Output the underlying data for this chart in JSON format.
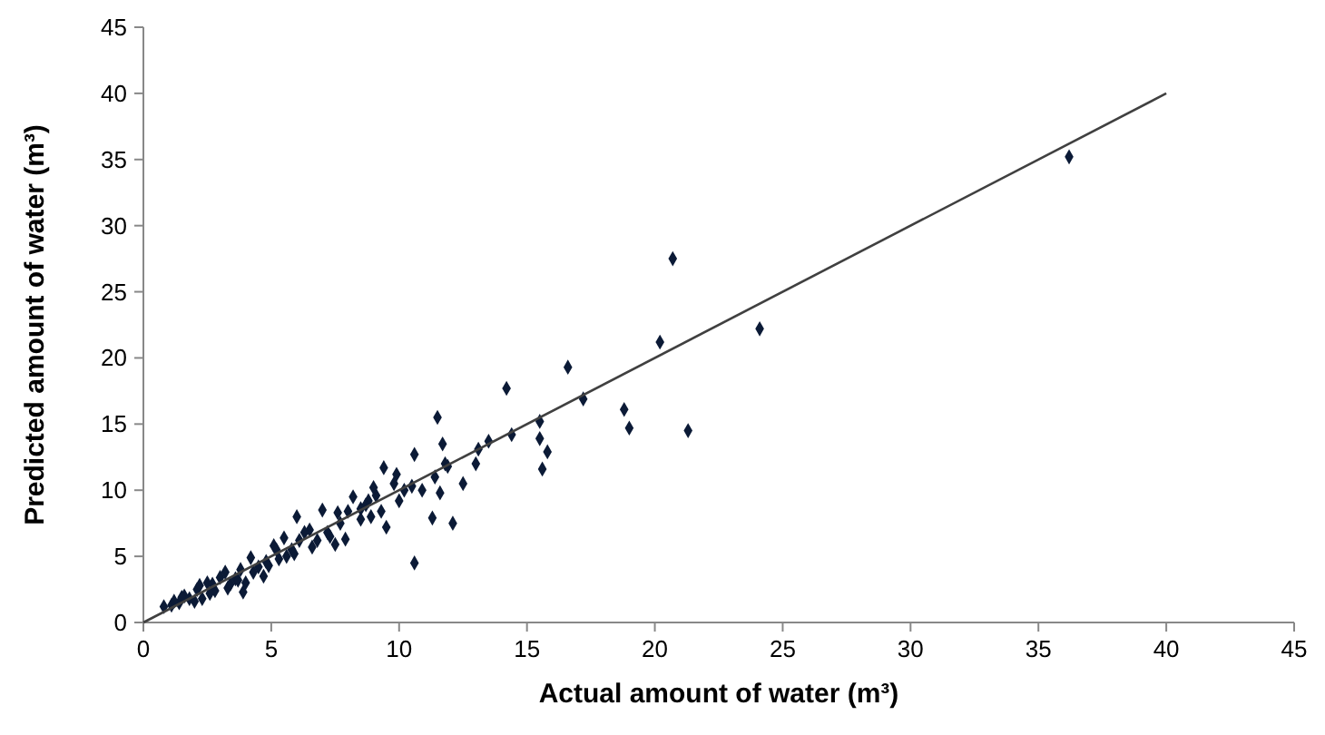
{
  "chart_data": {
    "type": "scatter",
    "xlabel": "Actual amount of water (m³)",
    "ylabel": "Predicted amount of water (m³)",
    "xlim": [
      0,
      45
    ],
    "ylim": [
      0,
      45
    ],
    "xticks": [
      0,
      5,
      10,
      15,
      20,
      25,
      30,
      35,
      40,
      45
    ],
    "yticks": [
      0,
      5,
      10,
      15,
      20,
      25,
      30,
      35,
      40,
      45
    ],
    "grid": false,
    "series": [
      {
        "marker": "diamond",
        "color": "#0b1a36",
        "x": [
          36.2,
          24.1,
          20.7,
          20.2,
          21.3,
          18.8,
          19.0,
          17.2,
          16.6,
          15.8,
          15.5,
          15.6,
          15.5,
          14.2,
          14.4,
          13.5,
          13.0,
          13.1,
          12.1,
          11.8,
          11.5,
          11.7,
          11.9,
          11.4,
          11.3,
          11.6,
          10.6,
          10.6,
          10.2,
          10.5,
          9.9,
          9.4,
          9.8,
          9.5,
          9.1,
          8.8,
          8.9,
          8.5,
          8.0,
          7.7,
          7.5,
          7.3,
          6.8,
          6.5,
          6.1,
          5.8,
          5.5,
          5.3,
          5.1,
          4.8,
          4.5,
          4.2,
          4.0,
          3.8,
          3.6,
          3.3,
          3.0,
          2.8,
          2.5,
          2.3,
          2.1,
          1.8,
          1.6,
          1.4,
          1.1,
          0.8,
          6.0,
          7.0,
          8.2,
          7.9,
          8.5,
          9.0,
          10.0,
          10.9,
          6.6,
          5.6,
          4.7,
          3.9,
          3.2,
          2.7,
          2.0,
          12.5,
          1.2,
          1.5,
          2.2,
          2.6,
          3.4,
          3.7,
          4.3,
          4.9,
          5.2,
          5.9,
          6.3,
          7.2,
          7.6,
          8.7,
          9.3
        ],
        "values": [
          35.2,
          22.2,
          27.5,
          21.2,
          14.5,
          16.1,
          14.7,
          16.9,
          19.3,
          12.9,
          13.9,
          11.6,
          15.2,
          17.7,
          14.2,
          13.7,
          12.0,
          13.1,
          7.5,
          12.0,
          15.5,
          13.5,
          11.8,
          11.0,
          7.9,
          9.8,
          4.5,
          12.7,
          10.0,
          10.3,
          11.2,
          11.7,
          10.5,
          7.2,
          9.6,
          9.2,
          8.0,
          8.6,
          8.4,
          7.5,
          5.9,
          6.5,
          6.2,
          7.0,
          6.2,
          5.5,
          6.4,
          4.8,
          5.8,
          4.6,
          4.2,
          4.9,
          3.0,
          4.0,
          3.3,
          2.6,
          3.4,
          2.4,
          3.0,
          1.8,
          2.5,
          1.8,
          2.0,
          1.5,
          1.3,
          1.2,
          8.0,
          8.5,
          9.5,
          6.3,
          7.8,
          10.2,
          9.2,
          10.0,
          5.7,
          5.0,
          3.5,
          2.3,
          3.8,
          2.9,
          1.6,
          10.5,
          1.6,
          1.9,
          2.8,
          2.2,
          2.9,
          3.2,
          3.8,
          4.3,
          5.5,
          5.2,
          6.8,
          6.8,
          8.3,
          8.9,
          8.4
        ]
      },
      {
        "type": "line",
        "marker": "none",
        "color": "#404040",
        "x": [
          0,
          40
        ],
        "values": [
          0,
          40
        ]
      }
    ]
  }
}
